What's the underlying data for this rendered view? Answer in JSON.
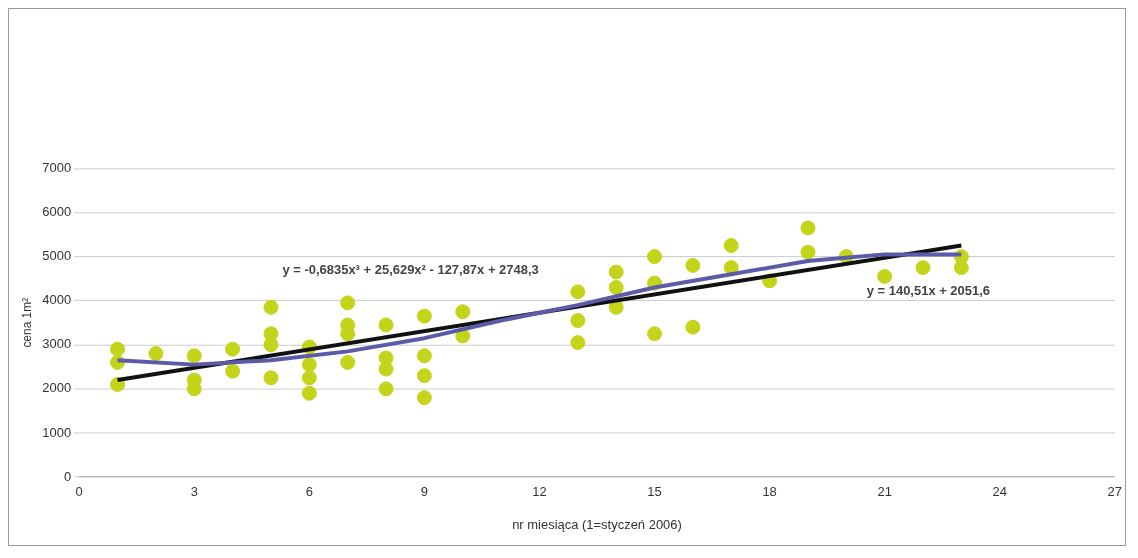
{
  "chart_data": {
    "type": "scatter",
    "xlabel": "nr miesiąca (1=styczeń 2006)",
    "ylabel": "cena 1m²",
    "xlim": [
      0,
      27
    ],
    "xticks": [
      0,
      3,
      6,
      9,
      12,
      15,
      18,
      21,
      24,
      27
    ],
    "ylim": [
      0,
      7000
    ],
    "yticks": [
      0,
      1000,
      2000,
      3000,
      4000,
      5000,
      6000,
      7000
    ],
    "grid": "y",
    "legend": false,
    "series": [
      {
        "color": "#c3d41a",
        "marker": "circle",
        "x": [
          1,
          1,
          1,
          2,
          3,
          3,
          3,
          4,
          4,
          5,
          5,
          5,
          5,
          6,
          6,
          6,
          6,
          7,
          7,
          7,
          7,
          8,
          8,
          8,
          8,
          9,
          9,
          9,
          9,
          10,
          10,
          13,
          13,
          13,
          14,
          14,
          14,
          15,
          15,
          15,
          16,
          16,
          17,
          17,
          18,
          19,
          19,
          20,
          21,
          22,
          23,
          23
        ],
        "values": [
          2900,
          2600,
          2100,
          2800,
          2750,
          2200,
          2000,
          2900,
          2400,
          3850,
          3250,
          3000,
          2250,
          2950,
          2550,
          2250,
          1900,
          3950,
          3450,
          3250,
          2600,
          3450,
          2700,
          2450,
          2000,
          3650,
          2750,
          2300,
          1800,
          3750,
          3200,
          4200,
          3550,
          3050,
          4650,
          4300,
          3850,
          5000,
          4400,
          3250,
          4800,
          3400,
          5250,
          4750,
          4450,
          5650,
          5100,
          5000,
          4550,
          4750,
          5000,
          4750
        ]
      },
      {
        "type": "line",
        "color": "#5b5ba8",
        "marker": "none",
        "line_style": "solid",
        "x": [
          1,
          3,
          5,
          7,
          9,
          11,
          13,
          15,
          17,
          19,
          21,
          23
        ],
        "values": [
          2650,
          2550,
          2650,
          2850,
          3150,
          3550,
          3900,
          4300,
          4600,
          4900,
          5050,
          5050
        ]
      },
      {
        "type": "line",
        "color": "#111111",
        "marker": "none",
        "line_style": "solid",
        "x": [
          1,
          23
        ],
        "values": [
          2200,
          5250
        ]
      }
    ],
    "annotations": [
      "y = -0,6835x³ + 25,629x² - 127,87x + 2748,3",
      "y = 140,51x + 2051,6"
    ]
  }
}
